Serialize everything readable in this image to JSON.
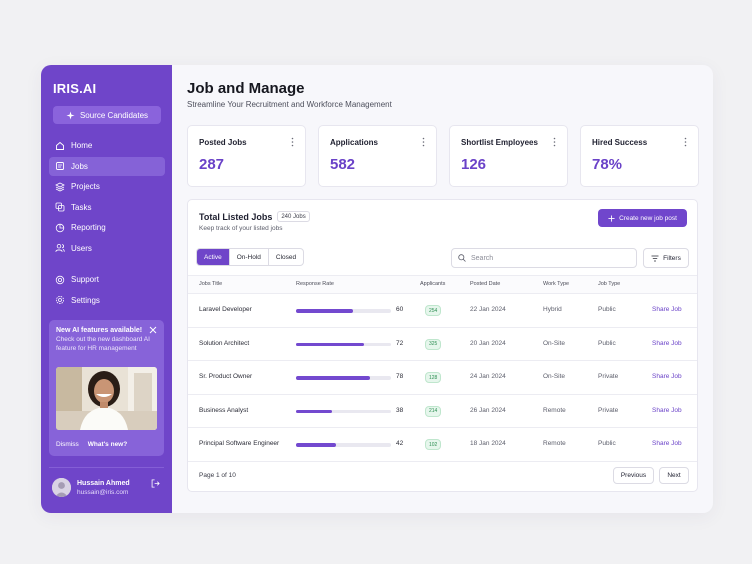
{
  "sidebar": {
    "brand": "IRIS.AI",
    "source_button": "Source Candidates",
    "nav": [
      {
        "label": "Home",
        "icon": "home-icon"
      },
      {
        "label": "Jobs",
        "icon": "jobs-icon",
        "active": true
      },
      {
        "label": "Projects",
        "icon": "projects-icon"
      },
      {
        "label": "Tasks",
        "icon": "tasks-icon"
      },
      {
        "label": "Reporting",
        "icon": "reporting-icon"
      },
      {
        "label": "Users",
        "icon": "users-icon"
      }
    ],
    "nav_secondary": [
      {
        "label": "Support",
        "icon": "support-icon"
      },
      {
        "label": "Settings",
        "icon": "settings-icon"
      }
    ],
    "promo": {
      "title": "New AI features available!",
      "text": "Check out the new dashboard AI feature for HR management",
      "dismiss": "Dismiss",
      "whats_new": "What's new?"
    },
    "user": {
      "name": "Hussain Ahmed",
      "email": "hussain@iris.com"
    }
  },
  "header": {
    "title": "Job and Manage",
    "subtitle": "Streamline Your Recruitment and Workforce Management"
  },
  "stats": [
    {
      "label": "Posted Jobs",
      "value": "287"
    },
    {
      "label": "Applications",
      "value": "582"
    },
    {
      "label": "Shortlist Employees",
      "value": "126"
    },
    {
      "label": "Hired Success",
      "value": "78%"
    }
  ],
  "table": {
    "title": "Total Listed Jobs",
    "count_badge": "240 Jobs",
    "subtitle": "Keep track of your listed jobs",
    "create_button": "Create new job post",
    "tabs": [
      "Active",
      "On-Hold",
      "Closed"
    ],
    "search_placeholder": "Search",
    "filters_label": "Filters",
    "columns": [
      "Jobs Title",
      "Response Rate",
      "Applicants",
      "Posted Date",
      "Work Type",
      "Job Type"
    ],
    "rows": [
      {
        "title": "Laravel Developer",
        "rate": 60,
        "applicants": "254",
        "date": "22 Jan 2024",
        "work": "Hybrid",
        "type": "Public",
        "action": "Share Job"
      },
      {
        "title": "Solution Architect",
        "rate": 72,
        "applicants": "325",
        "date": "20 Jan 2024",
        "work": "On-Site",
        "type": "Public",
        "action": "Share Job"
      },
      {
        "title": "Sr. Product Owner",
        "rate": 78,
        "applicants": "128",
        "date": "24 Jan 2024",
        "work": "On-Site",
        "type": "Private",
        "action": "Share Job"
      },
      {
        "title": "Business Analyst",
        "rate": 38,
        "applicants": "214",
        "date": "26 Jan 2024",
        "work": "Remote",
        "type": "Private",
        "action": "Share Job"
      },
      {
        "title": "Principal Software Engineer",
        "rate": 42,
        "applicants": "102",
        "date": "18 Jan 2024",
        "work": "Remote",
        "type": "Public",
        "action": "Share Job"
      }
    ],
    "page_info": "Page 1 of 10",
    "prev": "Previous",
    "next": "Next"
  },
  "colors": {
    "primary": "#6f45c9",
    "accent_text": "#6a42c8",
    "badge_green": "#2f8f54"
  }
}
